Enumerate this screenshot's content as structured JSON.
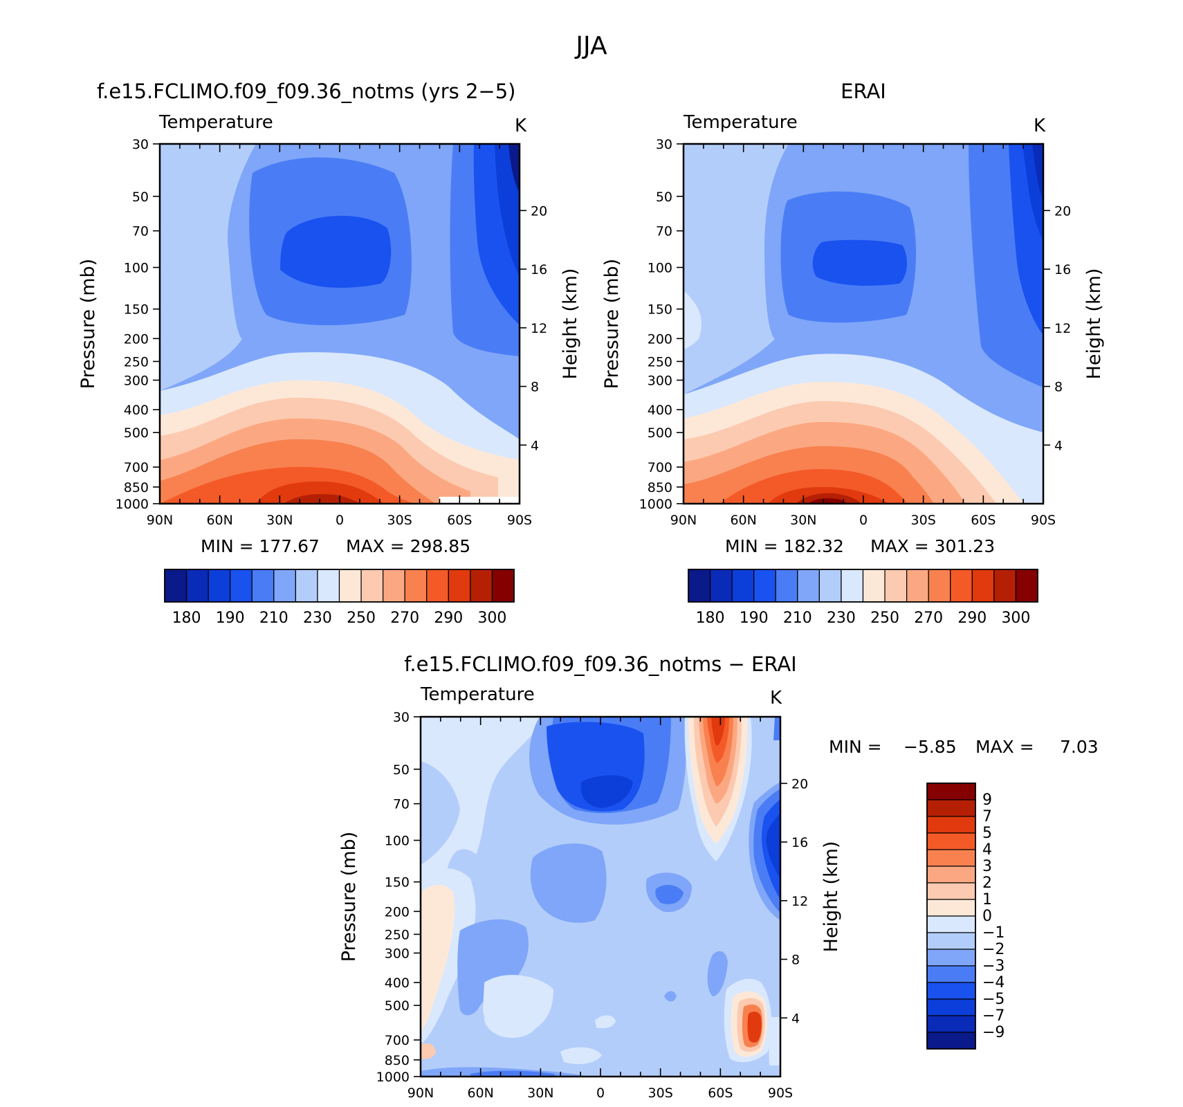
{
  "figure": {
    "season": "JJA"
  },
  "chart_data": [
    {
      "type": "heatmap",
      "title": "f.e15.FCLIMO.f09_f09.36_notms (yrs 2−5)",
      "subtitle": "Temperature",
      "units": "K",
      "ylabel": "Pressure (mb)",
      "ylabel_right": "Height (km)",
      "x_ticks": [
        "90N",
        "60N",
        "30N",
        "0",
        "30S",
        "60S",
        "90S"
      ],
      "y_ticks": [
        "30",
        "50",
        "70",
        "100",
        "150",
        "200",
        "250",
        "300",
        "400",
        "500",
        "700",
        "850",
        "1000"
      ],
      "y_right_ticks": [
        "20",
        "16",
        "12",
        "8",
        "4"
      ],
      "min_label": "MIN =  177.67",
      "max_label": "MAX =  298.85",
      "min": 177.67,
      "max": 298.85,
      "colorbar_labels": [
        "180",
        "190",
        "210",
        "230",
        "250",
        "270",
        "290",
        "300"
      ],
      "levels": [
        180,
        190,
        200,
        210,
        220,
        230,
        240,
        250,
        260,
        270,
        280,
        290,
        295,
        300
      ],
      "colors": [
        "#0a1a8a",
        "#0a2bb8",
        "#0c3ed9",
        "#1a52f0",
        "#4a7df5",
        "#7fa6f8",
        "#b3cdfb",
        "#d9e8fd",
        "#fde8d8",
        "#fccab0",
        "#fba882",
        "#f8814f",
        "#f45a28",
        "#e03a0e",
        "#b52005",
        "#850000"
      ]
    },
    {
      "type": "heatmap",
      "title": "ERAI",
      "subtitle": "Temperature",
      "units": "K",
      "ylabel": "Pressure (mb)",
      "ylabel_right": "Height (km)",
      "x_ticks": [
        "90N",
        "60N",
        "30N",
        "0",
        "30S",
        "60S",
        "90S"
      ],
      "y_ticks": [
        "30",
        "50",
        "70",
        "100",
        "150",
        "200",
        "250",
        "300",
        "400",
        "500",
        "700",
        "850",
        "1000"
      ],
      "y_right_ticks": [
        "20",
        "16",
        "12",
        "8",
        "4"
      ],
      "min_label": "MIN =  182.32",
      "max_label": "MAX =  301.23",
      "min": 182.32,
      "max": 301.23,
      "colorbar_labels": [
        "180",
        "190",
        "210",
        "230",
        "250",
        "270",
        "290",
        "300"
      ],
      "levels": [
        180,
        190,
        200,
        210,
        220,
        230,
        240,
        250,
        260,
        270,
        280,
        290,
        295,
        300
      ],
      "colors": [
        "#0a1a8a",
        "#0a2bb8",
        "#0c3ed9",
        "#1a52f0",
        "#4a7df5",
        "#7fa6f8",
        "#b3cdfb",
        "#d9e8fd",
        "#fde8d8",
        "#fccab0",
        "#fba882",
        "#f8814f",
        "#f45a28",
        "#e03a0e",
        "#b52005",
        "#850000"
      ]
    },
    {
      "type": "heatmap",
      "title": "f.e15.FCLIMO.f09_f09.36_notms − ERAI",
      "subtitle": "Temperature",
      "units": "K",
      "ylabel": "Pressure (mb)",
      "ylabel_right": "Height (km)",
      "x_ticks": [
        "90N",
        "60N",
        "30N",
        "0",
        "30S",
        "60S",
        "90S"
      ],
      "y_ticks": [
        "30",
        "50",
        "70",
        "100",
        "150",
        "200",
        "250",
        "300",
        "400",
        "500",
        "700",
        "850",
        "1000"
      ],
      "y_right_ticks": [
        "20",
        "16",
        "12",
        "8",
        "4"
      ],
      "min_label": "MIN =",
      "min_value": "−5.85",
      "max_label": "MAX =",
      "max_value": "7.03",
      "min": -5.85,
      "max": 7.03,
      "colorbar_labels": [
        "9",
        "7",
        "5",
        "4",
        "3",
        "2",
        "1",
        "0",
        "−1",
        "−2",
        "−3",
        "−4",
        "−5",
        "−7",
        "−9"
      ],
      "levels": [
        -9,
        -7,
        -5,
        -4,
        -3,
        -2,
        -1,
        0,
        1,
        2,
        3,
        4,
        5,
        7,
        9
      ],
      "colors": [
        "#0a1a8a",
        "#0a2bb8",
        "#0c3ed9",
        "#1a52f0",
        "#4a7df5",
        "#7fa6f8",
        "#b3cdfb",
        "#d9e8fd",
        "#fde8d8",
        "#fccab0",
        "#fba882",
        "#f8814f",
        "#f45a28",
        "#e03a0e",
        "#b52005",
        "#850000"
      ]
    }
  ]
}
